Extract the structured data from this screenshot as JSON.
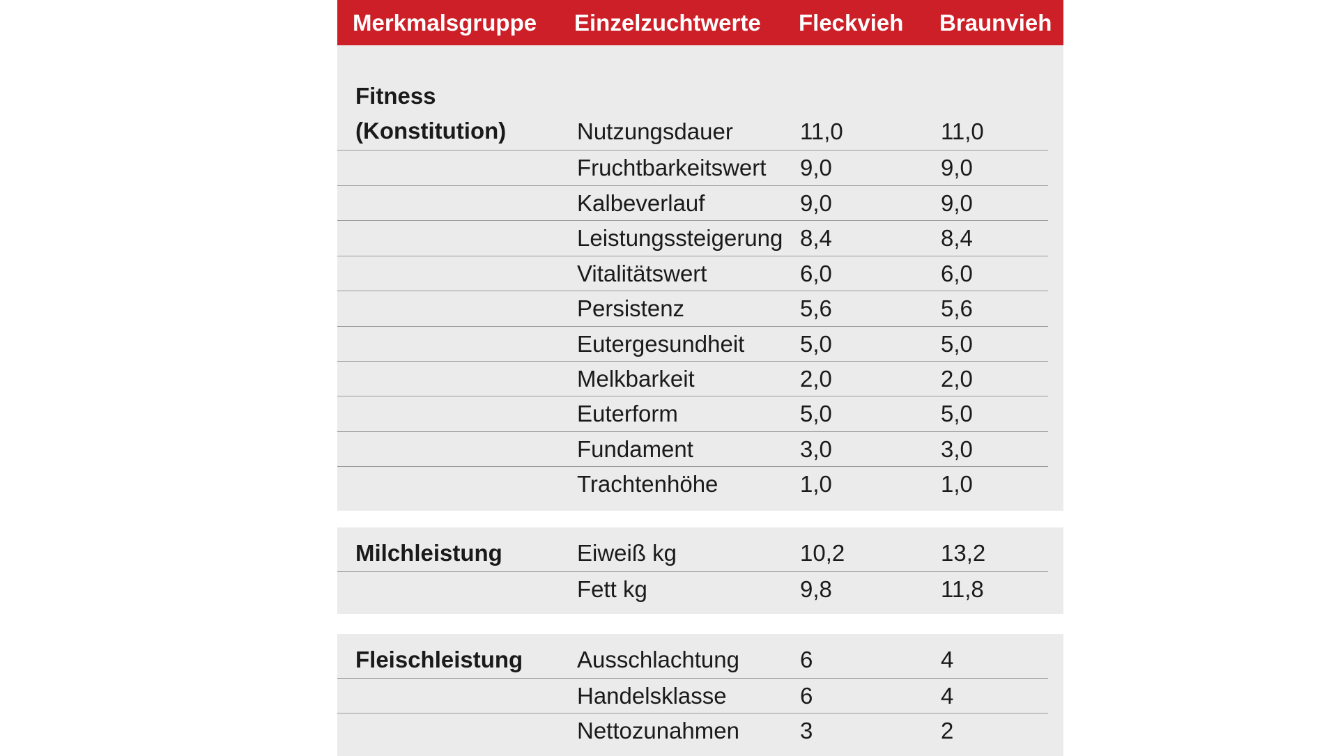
{
  "header": {
    "group": "Merkmalsgruppe",
    "name": "Einzelzuchtwerte",
    "fleckvieh": "Fleckvieh",
    "braunvieh": "Braunvieh"
  },
  "groups": [
    {
      "label_line1": "Fitness",
      "label_line2": "(Konstitution)",
      "rows": [
        {
          "name": "Nutzungsdauer",
          "fleckvieh": "11,0",
          "braunvieh": "11,0"
        },
        {
          "name": "Fruchtbarkeitswert",
          "fleckvieh": "9,0",
          "braunvieh": "9,0"
        },
        {
          "name": "Kalbeverlauf",
          "fleckvieh": "9,0",
          "braunvieh": "9,0"
        },
        {
          "name": "Leistungssteigerung",
          "fleckvieh": "8,4",
          "braunvieh": "8,4"
        },
        {
          "name": "Vitalitätswert",
          "fleckvieh": "6,0",
          "braunvieh": "6,0"
        },
        {
          "name": "Persistenz",
          "fleckvieh": "5,6",
          "braunvieh": "5,6"
        },
        {
          "name": "Eutergesundheit",
          "fleckvieh": "5,0",
          "braunvieh": "5,0"
        },
        {
          "name": "Melkbarkeit",
          "fleckvieh": "2,0",
          "braunvieh": "2,0"
        },
        {
          "name": "Euterform",
          "fleckvieh": "5,0",
          "braunvieh": "5,0"
        },
        {
          "name": "Fundament",
          "fleckvieh": "3,0",
          "braunvieh": "3,0"
        },
        {
          "name": "Trachtenhöhe",
          "fleckvieh": "1,0",
          "braunvieh": "1,0"
        }
      ]
    },
    {
      "label_line1": "Milchleistung",
      "rows": [
        {
          "name": "Eiweiß kg",
          "fleckvieh": "10,2",
          "braunvieh": "13,2"
        },
        {
          "name": "Fett kg",
          "fleckvieh": "9,8",
          "braunvieh": "11,8"
        }
      ]
    },
    {
      "label_line1": "Fleischleistung",
      "rows": [
        {
          "name": "Ausschlachtung",
          "fleckvieh": "6",
          "braunvieh": "4"
        },
        {
          "name": "Handelsklasse",
          "fleckvieh": "6",
          "braunvieh": "4"
        },
        {
          "name": "Nettozunahmen",
          "fleckvieh": "3",
          "braunvieh": "2"
        }
      ]
    }
  ]
}
